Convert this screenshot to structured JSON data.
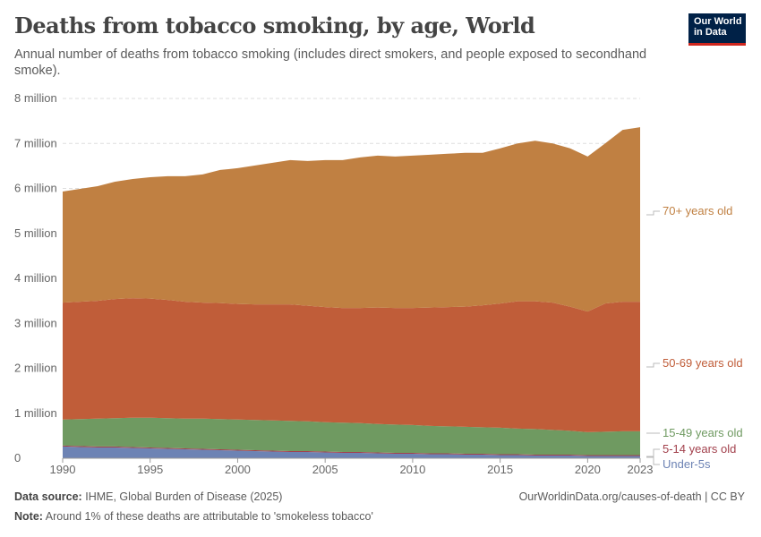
{
  "header": {
    "title": "Deaths from tobacco smoking, by age, World",
    "subtitle": "Annual number of deaths from tobacco smoking (includes direct smokers, and people exposed to secondhand smoke).",
    "logo_text": "Our World in Data"
  },
  "footer": {
    "source_label": "Data source:",
    "source": "IHME, Global Burden of Disease (2025)",
    "url": "OurWorldinData.org/causes-of-death | CC BY",
    "note_label": "Note:",
    "note": "Around 1% of these deaths are attributable to 'smokeless tobacco'"
  },
  "chart_data": {
    "type": "area",
    "stacked": true,
    "title": "Deaths from tobacco smoking, by age, World",
    "ylim": [
      0,
      8000000
    ],
    "yticks": [
      {
        "v": 0,
        "label": "0"
      },
      {
        "v": 1000000,
        "label": "1 million"
      },
      {
        "v": 2000000,
        "label": "2 million"
      },
      {
        "v": 3000000,
        "label": "3 million"
      },
      {
        "v": 4000000,
        "label": "4 million"
      },
      {
        "v": 5000000,
        "label": "5 million"
      },
      {
        "v": 6000000,
        "label": "6 million"
      },
      {
        "v": 7000000,
        "label": "7 million"
      },
      {
        "v": 8000000,
        "label": "8 million"
      }
    ],
    "xticks": [
      "1990",
      "1995",
      "2000",
      "2005",
      "2010",
      "2015",
      "2020",
      "2023"
    ],
    "grid": true,
    "legend_placement": "right, inline labels",
    "unit_note": "values in millions",
    "x": [
      1990,
      1991,
      1992,
      1993,
      1994,
      1995,
      1996,
      1997,
      1998,
      1999,
      2000,
      2001,
      2002,
      2003,
      2004,
      2005,
      2006,
      2007,
      2008,
      2009,
      2010,
      2011,
      2012,
      2013,
      2014,
      2015,
      2016,
      2017,
      2018,
      2019,
      2020,
      2021,
      2022,
      2023
    ],
    "series": [
      {
        "name": "Under-5s",
        "color": "#6d83b4",
        "values": [
          0.26,
          0.25,
          0.24,
          0.24,
          0.23,
          0.22,
          0.21,
          0.2,
          0.19,
          0.18,
          0.17,
          0.16,
          0.15,
          0.14,
          0.14,
          0.13,
          0.12,
          0.12,
          0.11,
          0.1,
          0.1,
          0.09,
          0.09,
          0.08,
          0.08,
          0.07,
          0.07,
          0.06,
          0.06,
          0.06,
          0.05,
          0.05,
          0.05,
          0.05
        ]
      },
      {
        "name": "5-14 years old",
        "color": "#a2404c",
        "values": [
          0.02,
          0.02,
          0.02,
          0.02,
          0.02,
          0.02,
          0.02,
          0.02,
          0.02,
          0.02,
          0.02,
          0.02,
          0.02,
          0.02,
          0.02,
          0.02,
          0.02,
          0.02,
          0.02,
          0.02,
          0.02,
          0.02,
          0.02,
          0.02,
          0.02,
          0.02,
          0.02,
          0.02,
          0.02,
          0.02,
          0.02,
          0.02,
          0.02,
          0.02
        ]
      },
      {
        "name": "15-49 years old",
        "color": "#6f9a61",
        "values": [
          0.58,
          0.6,
          0.62,
          0.63,
          0.65,
          0.66,
          0.66,
          0.66,
          0.67,
          0.67,
          0.67,
          0.67,
          0.67,
          0.67,
          0.66,
          0.65,
          0.65,
          0.64,
          0.63,
          0.63,
          0.62,
          0.61,
          0.6,
          0.6,
          0.59,
          0.59,
          0.57,
          0.57,
          0.55,
          0.53,
          0.51,
          0.52,
          0.53,
          0.53
        ]
      },
      {
        "name": "50-69 years old",
        "color": "#c05d39",
        "values": [
          2.6,
          2.61,
          2.62,
          2.65,
          2.66,
          2.65,
          2.63,
          2.6,
          2.58,
          2.58,
          2.57,
          2.57,
          2.58,
          2.59,
          2.57,
          2.56,
          2.55,
          2.56,
          2.59,
          2.59,
          2.6,
          2.63,
          2.65,
          2.67,
          2.71,
          2.76,
          2.83,
          2.84,
          2.83,
          2.76,
          2.68,
          2.85,
          2.88,
          2.88
        ]
      },
      {
        "name": "70+ years old",
        "color": "#c08042",
        "values": [
          2.47,
          2.51,
          2.55,
          2.61,
          2.65,
          2.7,
          2.75,
          2.79,
          2.85,
          2.96,
          3.02,
          3.09,
          3.15,
          3.21,
          3.22,
          3.27,
          3.29,
          3.35,
          3.38,
          3.37,
          3.39,
          3.4,
          3.41,
          3.42,
          3.39,
          3.45,
          3.51,
          3.57,
          3.54,
          3.52,
          3.45,
          3.56,
          3.82,
          3.88
        ]
      }
    ]
  }
}
